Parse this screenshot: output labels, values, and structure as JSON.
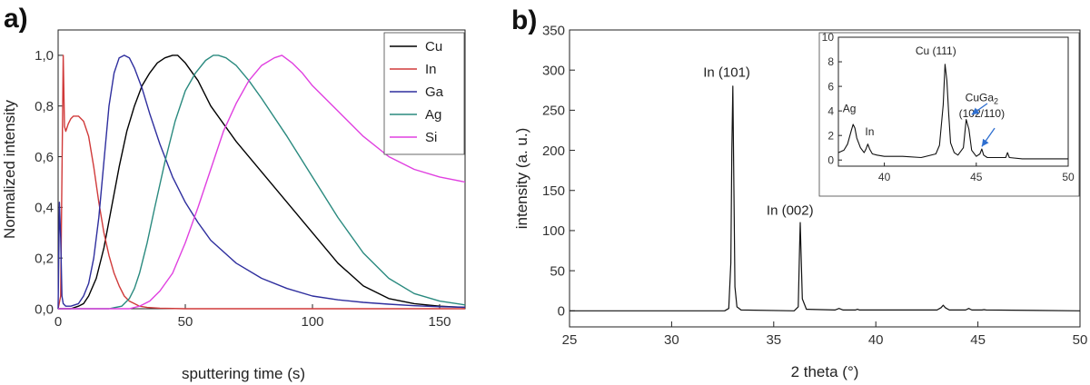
{
  "panels": {
    "a": {
      "label": "a)"
    },
    "b": {
      "label": "b)"
    }
  },
  "chart_data": [
    {
      "id": "a",
      "type": "line",
      "xlabel": "sputtering time (s)",
      "ylabel": "Normalized intensity",
      "xlim": [
        0,
        160
      ],
      "ylim": [
        0,
        1.1
      ],
      "xticks": [
        0,
        50,
        100,
        150
      ],
      "xtick_labels": [
        "0",
        "50",
        "100",
        "150"
      ],
      "yticks": [
        0.0,
        0.2,
        0.4,
        0.6,
        0.8,
        1.0
      ],
      "ytick_labels": [
        "0,0",
        "0,2",
        "0,4",
        "0,6",
        "0,8",
        "1,0"
      ],
      "legend_position": "top-right",
      "grid": false,
      "series": [
        {
          "name": "Cu",
          "color": "#000000",
          "x": [
            0,
            5,
            8,
            10,
            12,
            15,
            18,
            21,
            24,
            27,
            30,
            33,
            36,
            39,
            42,
            45,
            47,
            50,
            55,
            60,
            70,
            80,
            90,
            100,
            110,
            120,
            130,
            140,
            150,
            160
          ],
          "y": [
            0,
            0.0,
            0.01,
            0.02,
            0.05,
            0.12,
            0.24,
            0.4,
            0.56,
            0.7,
            0.8,
            0.88,
            0.93,
            0.97,
            0.99,
            1.0,
            1.0,
            0.97,
            0.9,
            0.8,
            0.66,
            0.54,
            0.42,
            0.3,
            0.18,
            0.09,
            0.04,
            0.02,
            0.01,
            0.005
          ]
        },
        {
          "name": "In",
          "color": "#d03a3a",
          "x": [
            0,
            1,
            2,
            2.5,
            3,
            4,
            5,
            6,
            8,
            10,
            12,
            14,
            16,
            18,
            20,
            22,
            24,
            26,
            28,
            30,
            32,
            35,
            40,
            50,
            160
          ],
          "y": [
            0,
            0.05,
            1.0,
            0.72,
            0.7,
            0.73,
            0.75,
            0.76,
            0.76,
            0.74,
            0.68,
            0.56,
            0.42,
            0.3,
            0.21,
            0.14,
            0.09,
            0.05,
            0.03,
            0.02,
            0.01,
            0.005,
            0.002,
            0.0,
            0.0
          ]
        },
        {
          "name": "Ga",
          "color": "#2e2e9e",
          "x": [
            0,
            0.5,
            1,
            1.5,
            2,
            3,
            5,
            8,
            10,
            12,
            14,
            16,
            18,
            20,
            22,
            24,
            26,
            28,
            30,
            33,
            36,
            40,
            45,
            50,
            55,
            60,
            70,
            80,
            90,
            100,
            110,
            120,
            130,
            140,
            150,
            160
          ],
          "y": [
            0,
            0.42,
            0.28,
            0.05,
            0.02,
            0.01,
            0.01,
            0.02,
            0.05,
            0.1,
            0.2,
            0.36,
            0.58,
            0.8,
            0.93,
            0.99,
            1.0,
            0.99,
            0.95,
            0.87,
            0.77,
            0.65,
            0.52,
            0.42,
            0.34,
            0.27,
            0.18,
            0.12,
            0.08,
            0.05,
            0.035,
            0.025,
            0.018,
            0.012,
            0.008,
            0.006
          ]
        },
        {
          "name": "Ag",
          "color": "#2a8a7f",
          "x": [
            0,
            20,
            25,
            28,
            30,
            32,
            35,
            38,
            42,
            46,
            50,
            54,
            58,
            61,
            63,
            66,
            70,
            75,
            80,
            90,
            100,
            110,
            120,
            130,
            140,
            150,
            160
          ],
          "y": [
            0,
            0.0,
            0.01,
            0.04,
            0.08,
            0.14,
            0.26,
            0.4,
            0.58,
            0.74,
            0.86,
            0.93,
            0.98,
            1.0,
            1.0,
            0.99,
            0.96,
            0.9,
            0.83,
            0.68,
            0.52,
            0.36,
            0.22,
            0.12,
            0.06,
            0.03,
            0.015
          ]
        },
        {
          "name": "Si",
          "color": "#e040e0",
          "x": [
            0,
            28,
            32,
            36,
            40,
            45,
            50,
            55,
            60,
            65,
            70,
            75,
            80,
            85,
            88,
            92,
            96,
            100,
            110,
            120,
            130,
            140,
            150,
            155,
            160
          ],
          "y": [
            0,
            0.0,
            0.01,
            0.03,
            0.07,
            0.14,
            0.26,
            0.4,
            0.55,
            0.7,
            0.81,
            0.9,
            0.96,
            0.99,
            1.0,
            0.97,
            0.93,
            0.88,
            0.78,
            0.68,
            0.6,
            0.55,
            0.52,
            0.51,
            0.5
          ]
        }
      ]
    },
    {
      "id": "b",
      "type": "line",
      "xlabel": "2 theta (°)",
      "ylabel": "intensity (a. u.)",
      "xlim": [
        25,
        50
      ],
      "ylim": [
        -20,
        350
      ],
      "xticks": [
        25,
        30,
        35,
        40,
        45,
        50
      ],
      "xtick_labels": [
        "25",
        "30",
        "35",
        "40",
        "45",
        "50"
      ],
      "yticks": [
        0,
        50,
        100,
        150,
        200,
        250,
        300,
        350
      ],
      "ytick_labels": [
        "0",
        "50",
        "100",
        "150",
        "200",
        "250",
        "300",
        "350"
      ],
      "grid": false,
      "series": [
        {
          "color": "#111111",
          "x": [
            25,
            32.6,
            32.8,
            32.9,
            32.95,
            33.0,
            33.05,
            33.1,
            33.2,
            33.4,
            36.0,
            36.2,
            36.27,
            36.3,
            36.33,
            36.4,
            36.6,
            38.0,
            38.2,
            38.4,
            39.0,
            39.1,
            39.2,
            43.0,
            43.2,
            43.3,
            43.4,
            43.6,
            44.4,
            44.55,
            44.7,
            45.2,
            45.3,
            45.4,
            50
          ],
          "y": [
            0,
            0,
            3,
            60,
            200,
            280,
            150,
            30,
            5,
            1,
            0,
            5,
            80,
            110,
            80,
            15,
            2,
            1,
            3,
            1,
            1,
            2,
            1,
            1,
            4,
            7,
            4,
            1,
            1,
            3,
            1,
            1,
            1.5,
            1,
            0
          ]
        }
      ],
      "annotations": [
        {
          "text": "In (101)",
          "x": 32.7,
          "y": 292
        },
        {
          "text": "In (002)",
          "x": 35.8,
          "y": 120
        }
      ],
      "inset": {
        "xlim": [
          37.5,
          50
        ],
        "ylim": [
          -0.5,
          10
        ],
        "xticks": [
          40,
          45,
          50
        ],
        "xtick_labels": [
          "40",
          "45",
          "50"
        ],
        "yticks": [
          0,
          2,
          4,
          6,
          8,
          10
        ],
        "ytick_labels": [
          "0",
          "2",
          "4",
          "6",
          "8",
          "10"
        ],
        "series": [
          {
            "color": "#111111",
            "x": [
              37.5,
              37.8,
              38.0,
              38.2,
              38.3,
              38.4,
              38.5,
              38.7,
              38.9,
              39.0,
              39.1,
              39.2,
              39.35,
              39.6,
              40.0,
              41.0,
              42.0,
              42.8,
              43.0,
              43.2,
              43.3,
              43.4,
              43.5,
              43.6,
              43.8,
              44.0,
              44.3,
              44.45,
              44.6,
              44.75,
              45.0,
              45.2,
              45.3,
              45.4,
              45.6,
              46.0,
              46.6,
              46.7,
              46.8,
              47.5,
              48.5,
              49.5,
              50
            ],
            "y": [
              0.6,
              0.8,
              1.3,
              2.4,
              2.9,
              2.6,
              1.8,
              1.0,
              0.6,
              0.9,
              1.3,
              0.9,
              0.5,
              0.4,
              0.3,
              0.3,
              0.2,
              0.5,
              1.2,
              4.5,
              7.8,
              6.5,
              3.8,
              1.4,
              0.6,
              0.4,
              1.0,
              3.3,
              2.5,
              0.8,
              0.3,
              0.5,
              0.9,
              0.4,
              0.2,
              0.2,
              0.2,
              0.6,
              0.2,
              0.1,
              0.1,
              0.1,
              0.1
            ]
          }
        ],
        "annotations": [
          {
            "text": "Ag",
            "x": 38.1,
            "y": 3.9
          },
          {
            "text": "In",
            "x": 39.2,
            "y": 2.0
          },
          {
            "text": "Cu (111)",
            "x": 42.8,
            "y": 8.6
          },
          {
            "text": "CuGa",
            "sub": "2",
            "x": 45.3,
            "y": 4.8
          },
          {
            "text": "(102/110)",
            "x": 45.3,
            "y": 3.5
          }
        ]
      }
    }
  ]
}
